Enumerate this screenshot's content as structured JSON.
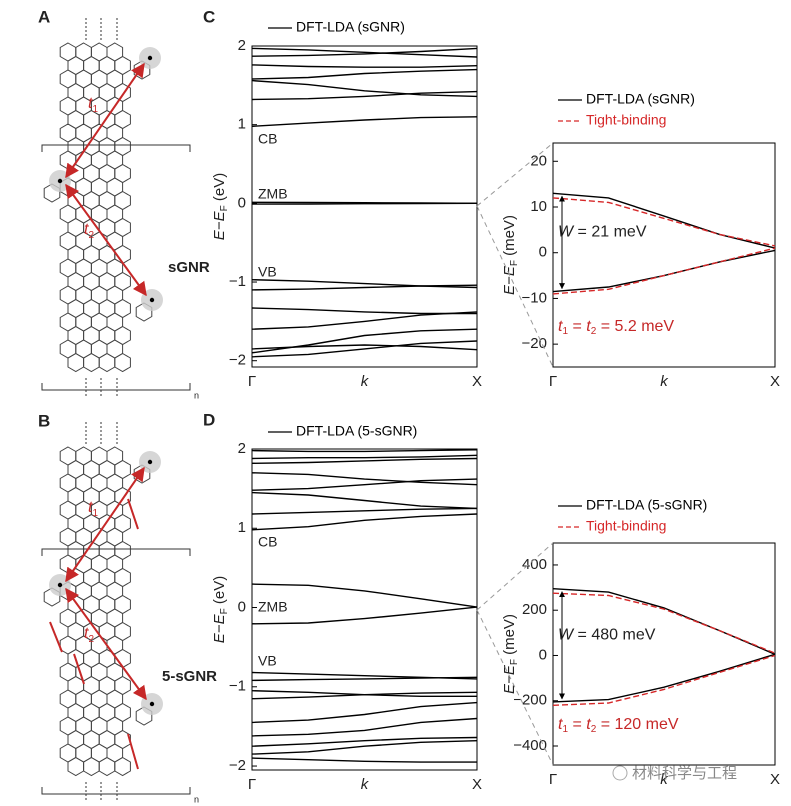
{
  "structures": [
    {
      "panel": "A",
      "name": "sGNR",
      "t1": {
        "t": "t",
        "sub": "1"
      },
      "t2": {
        "t": "t",
        "sub": "2"
      },
      "n": "n"
    },
    {
      "panel": "B",
      "name": "5-sGNR",
      "t1": {
        "t": "t",
        "sub": "1"
      },
      "t2": {
        "t": "t",
        "sub": "2"
      },
      "n": "n"
    }
  ],
  "chart_data": [
    {
      "type": "line",
      "panel": "C",
      "x": [
        0,
        0.25,
        0.5,
        0.75,
        1
      ],
      "xlim": [
        0,
        1
      ],
      "xticks": [
        {
          "value": 0,
          "label": "Γ"
        },
        {
          "value": 1,
          "label": "X"
        }
      ],
      "xlabel": "k",
      "ylabel": {
        "var": "E",
        "minus": "−E",
        "sub": "F",
        "unit": " (eV)"
      },
      "ylim": [
        -2.08,
        2.0
      ],
      "yticks": [
        {
          "value": -2,
          "label": "−2"
        },
        {
          "value": -1,
          "label": "−1"
        },
        0,
        1,
        2
      ],
      "annotations": [
        "CB",
        "ZMB",
        "VB"
      ],
      "series": [
        {
          "name": "DFT-LDA (sGNR)",
          "color": "#000000",
          "style": "solid",
          "bands": [
            [
              1.97,
              1.95,
              1.92,
              1.89,
              1.86
            ],
            [
              1.87,
              1.88,
              1.9,
              1.93,
              1.97
            ],
            [
              1.76,
              1.74,
              1.73,
              1.73,
              1.75
            ],
            [
              1.58,
              1.6,
              1.65,
              1.68,
              1.7
            ],
            [
              1.56,
              1.51,
              1.43,
              1.38,
              1.36
            ],
            [
              1.32,
              1.33,
              1.36,
              1.4,
              1.42
            ],
            [
              0.98,
              1.02,
              1.06,
              1.09,
              1.1
            ],
            [
              0.013,
              0.012,
              0.008,
              0.004,
              0.001
            ],
            [
              -0.009,
              -0.008,
              -0.005,
              -0.002,
              0.001
            ],
            [
              -0.97,
              -0.99,
              -1.02,
              -1.05,
              -1.07
            ],
            [
              -1.1,
              -1.09,
              -1.07,
              -1.05,
              -1.04
            ],
            [
              -1.33,
              -1.35,
              -1.38,
              -1.4,
              -1.4
            ],
            [
              -1.6,
              -1.57,
              -1.5,
              -1.42,
              -1.38
            ],
            [
              -1.9,
              -1.8,
              -1.68,
              -1.62,
              -1.6
            ],
            [
              -1.85,
              -1.82,
              -1.8,
              -1.82,
              -1.86
            ],
            [
              -1.95,
              -1.92,
              -1.85,
              -1.78,
              -1.75
            ]
          ]
        }
      ]
    },
    {
      "type": "line",
      "panel": "",
      "x": [
        0,
        0.25,
        0.5,
        0.75,
        1
      ],
      "xlim": [
        0,
        1
      ],
      "xticks": [
        {
          "value": 0,
          "label": "Γ"
        },
        {
          "value": 1,
          "label": "X"
        }
      ],
      "xlabel": "k",
      "ylabel": {
        "var": "E",
        "minus": "−E",
        "sub": "F",
        "unit": " (meV)"
      },
      "ylim": [
        -25,
        24
      ],
      "yticks": [
        {
          "value": -20,
          "label": "−20"
        },
        {
          "value": -10,
          "label": "−10"
        },
        0,
        10,
        20
      ],
      "width_label": {
        "var": "W",
        "text": " = 21 meV"
      },
      "hopping_label": {
        "t1": "t",
        "s1": "1",
        "mid": " = ",
        "t2": "t",
        "s2": "2",
        "rest": " = 5.2 meV"
      },
      "series": [
        {
          "name": "DFT-LDA (sGNR)",
          "color": "#000000",
          "style": "solid",
          "bands": [
            [
              13,
              12,
              8,
              4,
              1
            ],
            [
              -8.5,
              -7.5,
              -5,
              -2,
              0.5
            ]
          ]
        },
        {
          "name": "Tight-binding",
          "color": "#d62728",
          "style": "dashed",
          "bands": [
            [
              12,
              11,
              7.5,
              4,
              1.5
            ],
            [
              -9,
              -8,
              -5,
              -2,
              1
            ]
          ]
        }
      ]
    },
    {
      "type": "line",
      "panel": "D",
      "x": [
        0,
        0.25,
        0.5,
        0.75,
        1
      ],
      "xlim": [
        0,
        1
      ],
      "xticks": [
        {
          "value": 0,
          "label": "Γ"
        },
        {
          "value": 1,
          "label": "X"
        }
      ],
      "xlabel": "k",
      "ylabel": {
        "var": "E",
        "minus": "−E",
        "sub": "F",
        "unit": " (eV)"
      },
      "ylim": [
        -2.05,
        2.0
      ],
      "yticks": [
        {
          "value": -2,
          "label": "−2"
        },
        {
          "value": -1,
          "label": "−1"
        },
        0,
        1,
        2
      ],
      "annotations": [
        "CB",
        "ZMB",
        "VB"
      ],
      "series": [
        {
          "name": "DFT-LDA (5-sGNR)",
          "color": "#000000",
          "style": "solid",
          "bands": [
            [
              1.98,
              1.97,
              1.97,
              1.98,
              1.99
            ],
            [
              1.88,
              1.89,
              1.89,
              1.9,
              1.92
            ],
            [
              1.82,
              1.83,
              1.85,
              1.87,
              1.88
            ],
            [
              1.7,
              1.68,
              1.62,
              1.58,
              1.55
            ],
            [
              1.48,
              1.5,
              1.55,
              1.6,
              1.62
            ],
            [
              1.45,
              1.42,
              1.35,
              1.28,
              1.25
            ],
            [
              1.18,
              1.2,
              1.22,
              1.24,
              1.25
            ],
            [
              0.98,
              1.02,
              1.1,
              1.15,
              1.18
            ],
            [
              0.295,
              0.28,
              0.21,
              0.11,
              0.005
            ],
            [
              -0.205,
              -0.195,
              -0.14,
              -0.07,
              0.005
            ],
            [
              -0.82,
              -0.84,
              -0.86,
              -0.88,
              -0.9
            ],
            [
              -0.92,
              -0.91,
              -0.9,
              -0.89,
              -0.88
            ],
            [
              -1.05,
              -1.07,
              -1.1,
              -1.12,
              -1.12
            ],
            [
              -1.15,
              -1.13,
              -1.1,
              -1.08,
              -1.07
            ],
            [
              -1.45,
              -1.42,
              -1.35,
              -1.25,
              -1.2
            ],
            [
              -1.62,
              -1.6,
              -1.55,
              -1.45,
              -1.4
            ],
            [
              -1.75,
              -1.72,
              -1.68,
              -1.65,
              -1.64
            ],
            [
              -1.85,
              -1.82,
              -1.75,
              -1.7,
              -1.68
            ],
            [
              -1.9,
              -1.92,
              -1.94,
              -1.95,
              -1.95
            ]
          ]
        }
      ]
    },
    {
      "type": "line",
      "panel": "",
      "x": [
        0,
        0.25,
        0.5,
        0.75,
        1
      ],
      "xlim": [
        0,
        1
      ],
      "xticks": [
        {
          "value": 0,
          "label": "Γ"
        },
        {
          "value": 1,
          "label": "X"
        }
      ],
      "xlabel": "k",
      "ylabel": {
        "var": "E",
        "minus": "−E",
        "sub": "F",
        "unit": " (meV)"
      },
      "ylim": [
        -484,
        497
      ],
      "yticks": [
        {
          "value": -400,
          "label": "−400"
        },
        {
          "value": -200,
          "label": "−200"
        },
        0,
        200,
        400
      ],
      "width_label": {
        "var": "W",
        "text": " = 480 meV"
      },
      "hopping_label": {
        "t1": "t",
        "s1": "1",
        "mid": " = ",
        "t2": "t",
        "s2": "2",
        "rest": " = 120 meV"
      },
      "series": [
        {
          "name": "DFT-LDA (5-sGNR)",
          "color": "#000000",
          "style": "solid",
          "bands": [
            [
              295,
              280,
              210,
              110,
              5
            ],
            [
              -205,
              -195,
              -140,
              -70,
              5
            ]
          ]
        },
        {
          "name": "Tight-binding",
          "color": "#d62728",
          "style": "dashed",
          "bands": [
            [
              275,
              265,
              205,
              110,
              10
            ],
            [
              -220,
              -210,
              -150,
              -75,
              0
            ]
          ]
        }
      ]
    }
  ],
  "watermark": "材料科学与工程"
}
